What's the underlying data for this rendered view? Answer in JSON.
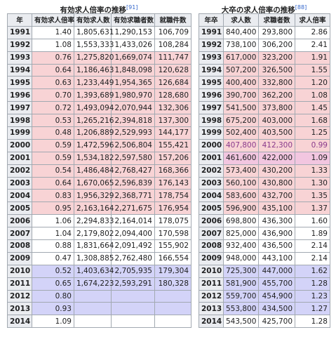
{
  "left_table": {
    "title": "有効求人倍率の推移",
    "citation": "[91]",
    "header": [
      "年",
      "有効求人倍率",
      "有効求人数",
      "有効求職者数",
      "就職件数"
    ],
    "rows": [
      [
        "1991",
        "1.40",
        "1,805,631",
        "1,290,153",
        "106,709"
      ],
      [
        "1992",
        "1.08",
        "1,553,333",
        "1,433,026",
        "108,284"
      ],
      [
        "1993",
        "0.76",
        "1,275,820",
        "1,669,074",
        "111,747"
      ],
      [
        "1994",
        "0.64",
        "1,186,463",
        "1,848,098",
        "120,628"
      ],
      [
        "1995",
        "0.63",
        "1,233,449",
        "1,954,365",
        "126,684"
      ],
      [
        "1996",
        "0.70",
        "1,393,689",
        "1,980,970",
        "128,680"
      ],
      [
        "1997",
        "0.72",
        "1,493,094",
        "2,070,944",
        "132,306"
      ],
      [
        "1998",
        "0.53",
        "1,265,216",
        "2,394,818",
        "137,300"
      ],
      [
        "1999",
        "0.48",
        "1,206,889",
        "2,529,993",
        "144,177"
      ],
      [
        "2000",
        "0.59",
        "1,472,596",
        "2,506,804",
        "155,421"
      ],
      [
        "2001",
        "0.59",
        "1,534,182",
        "2,597,580",
        "157,206"
      ],
      [
        "2002",
        "0.54",
        "1,486,484",
        "2,768,427",
        "168,366"
      ],
      [
        "2003",
        "0.64",
        "1,670,065",
        "2,596,839",
        "176,143"
      ],
      [
        "2004",
        "0.83",
        "1,956,329",
        "2,368,771",
        "178,754"
      ],
      [
        "2005",
        "0.95",
        "2,163,164",
        "2,271,675",
        "176,954"
      ],
      [
        "2006",
        "1.06",
        "2,294,833",
        "2,164,014",
        "178,075"
      ],
      [
        "2007",
        "1.04",
        "2,179,802",
        "2,094,400",
        "170,598"
      ],
      [
        "2008",
        "0.88",
        "1,831,664",
        "2,091,492",
        "155,902"
      ],
      [
        "2009",
        "0.47",
        "1,308,885",
        "2,762,480",
        "166,554"
      ],
      [
        "2010",
        "0.52",
        "1,403,634",
        "2,705,935",
        "179,304"
      ],
      [
        "2011",
        "0.65",
        "1,674,223",
        "2,593,291",
        "180,328"
      ],
      [
        "2012",
        "0.80"
      ],
      [
        "2013",
        "0.93"
      ],
      [
        "2014",
        "1.09"
      ]
    ],
    "row_colors": [
      "#ffffff",
      "#ffffff",
      "#f8d3d5",
      "#f8d3d5",
      "#f8d3d5",
      "#f8d3d5",
      "#f8d3d5",
      "#f8d3d5",
      "#f8d3d5",
      "#f8d3d5",
      "#f8d3d5",
      "#f8d3d5",
      "#f8d3d5",
      "#f8d3d5",
      "#f8d3d5",
      "#ffffff",
      "#ffffff",
      "#ffffff",
      "#ffffff",
      "#d3d3f8",
      "#d3d3f8",
      "#d3d3f8",
      "#d3d3f8",
      "#ffffff"
    ]
  },
  "right_table": {
    "title": "大卒の求人倍率の推移",
    "citation": "[88]",
    "header": [
      "年卒",
      "求人数",
      "求職者数",
      "求人倍率"
    ],
    "rows": [
      [
        "1991",
        "840,400",
        "293,800",
        "2.86"
      ],
      [
        "1992",
        "738,100",
        "306,200",
        "2.41"
      ],
      [
        "1993",
        "617,000",
        "323,200",
        "1.91"
      ],
      [
        "1994",
        "507,200",
        "326,500",
        "1.55"
      ],
      [
        "1995",
        "400,400",
        "332,800",
        "1.20"
      ],
      [
        "1996",
        "390,700",
        "362,200",
        "1.08"
      ],
      [
        "1997",
        "541,500",
        "373,800",
        "1.45"
      ],
      [
        "1998",
        "675,200",
        "403,000",
        "1.68"
      ],
      [
        "1999",
        "502,400",
        "403,500",
        "1.25"
      ],
      [
        "2000",
        "407,800",
        "412,300",
        "0.99"
      ],
      [
        "2001",
        "461,600",
        "422,000",
        "1.09"
      ],
      [
        "2002",
        "573,400",
        "430,200",
        "1.33"
      ],
      [
        "2003",
        "560,100",
        "430,800",
        "1.30"
      ],
      [
        "2004",
        "583,600",
        "432,700",
        "1.35"
      ],
      [
        "2005",
        "596,900",
        "435,100",
        "1.37"
      ],
      [
        "2006",
        "698,800",
        "436,300",
        "1.60"
      ],
      [
        "2007",
        "825,000",
        "436,900",
        "1.89"
      ],
      [
        "2008",
        "932,400",
        "436,500",
        "2.14"
      ],
      [
        "2009",
        "948,000",
        "443,100",
        "2.14"
      ],
      [
        "2010",
        "725,300",
        "447,000",
        "1.62"
      ],
      [
        "2011",
        "581,900",
        "455,700",
        "1.28"
      ],
      [
        "2012",
        "559,700",
        "454,900",
        "1.23"
      ],
      [
        "2013",
        "553,800",
        "434,500",
        "1.27"
      ],
      [
        "2014",
        "543,500",
        "425,700",
        "1.28"
      ]
    ],
    "row_colors": [
      "#ffffff",
      "#ffffff",
      "#f8d3d5",
      "#f8d3d5",
      "#f8d3d5",
      "#f8d3d5",
      "#f8d3d5",
      "#f8d3d5",
      "#f8d3d5",
      "#f8d3d5",
      "#f2c6e0",
      "#f8d3d5",
      "#f8d3d5",
      "#f8d3d5",
      "#f8d3d5",
      "#ffffff",
      "#ffffff",
      "#ffffff",
      "#ffffff",
      "#d3d3f8",
      "#d3d3f8",
      "#d3d3f8",
      "#d3d3f8",
      "#ffffff"
    ],
    "row_text_colors": [
      "#202122",
      "#202122",
      "#202122",
      "#202122",
      "#202122",
      "#202122",
      "#202122",
      "#202122",
      "#202122",
      "#8a3a8c",
      "#202122",
      "#202122",
      "#202122",
      "#202122",
      "#202122",
      "#202122",
      "#202122",
      "#202122",
      "#202122",
      "#202122",
      "#202122",
      "#202122",
      "#202122",
      "#202122"
    ]
  }
}
